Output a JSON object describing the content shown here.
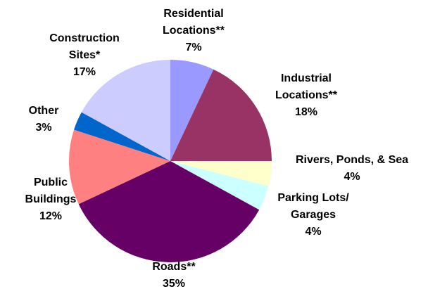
{
  "chart_data": {
    "type": "pie",
    "categories": [
      "Residential\nLocations**",
      "Industrial\nLocations**",
      "Rivers, Ponds, & Sea",
      "Parking Lots/\nGarages",
      "Roads**",
      "Public\nBuildings",
      "Other",
      "Construction\nSites*"
    ],
    "values": [
      7,
      18,
      4,
      4,
      35,
      12,
      3,
      17
    ],
    "value_labels": [
      "7%",
      "18%",
      "4%",
      "4%",
      "35%",
      "12%",
      "3%",
      "17%"
    ],
    "colors": [
      "#9999ff",
      "#993366",
      "#ffffcc",
      "#ccffff",
      "#660066",
      "#ff8080",
      "#0066cc",
      "#ccccff"
    ]
  }
}
